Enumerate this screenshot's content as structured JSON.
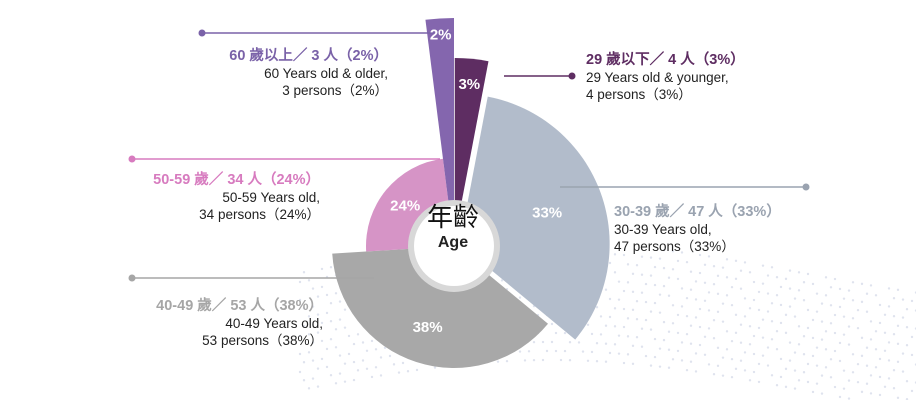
{
  "chart_data": {
    "type": "pie",
    "center_title_zh": "年齡",
    "center_title_en": "Age",
    "slices": [
      {
        "key": "29-under",
        "value": 3,
        "pct_label": "3%",
        "color": "#5e2d62",
        "label_color": "#5e2d62",
        "zh_label": "29 歲以下／ 4 人（3%）",
        "en_line1": "29 Years old & younger,",
        "en_line2": "4 persons（3%）"
      },
      {
        "key": "30-39",
        "value": 33,
        "pct_label": "33%",
        "color": "#b2bccb",
        "label_color": "#9aa3b0",
        "zh_label": "30-39 歲／ 47 人（33%）",
        "en_line1": "30-39 Years old,",
        "en_line2": "47 persons（33%）"
      },
      {
        "key": "40-49",
        "value": 38,
        "pct_label": "38%",
        "color": "#a8a8a8",
        "label_color": "#a6a6a6",
        "zh_label": "40-49 歲／ 53 人（38%）",
        "en_line1": "40-49 Years old,",
        "en_line2": "53 persons（38%）"
      },
      {
        "key": "50-59",
        "value": 24,
        "pct_label": "24%",
        "color": "#d694c6",
        "label_color": "#d77bbf",
        "zh_label": "50-59 歲／ 34 人（24%）",
        "en_line1": "50-59 Years old,",
        "en_line2": "34 persons（24%）"
      },
      {
        "key": "60-over",
        "value": 2,
        "pct_label": "2%",
        "color": "#8466ae",
        "label_color": "#7a62a8",
        "zh_label": "60 歲以上／ 3 人（2%）",
        "en_line1": "60 Years old & older,",
        "en_line2": "3 persons（2%）"
      }
    ],
    "legend": "none"
  }
}
